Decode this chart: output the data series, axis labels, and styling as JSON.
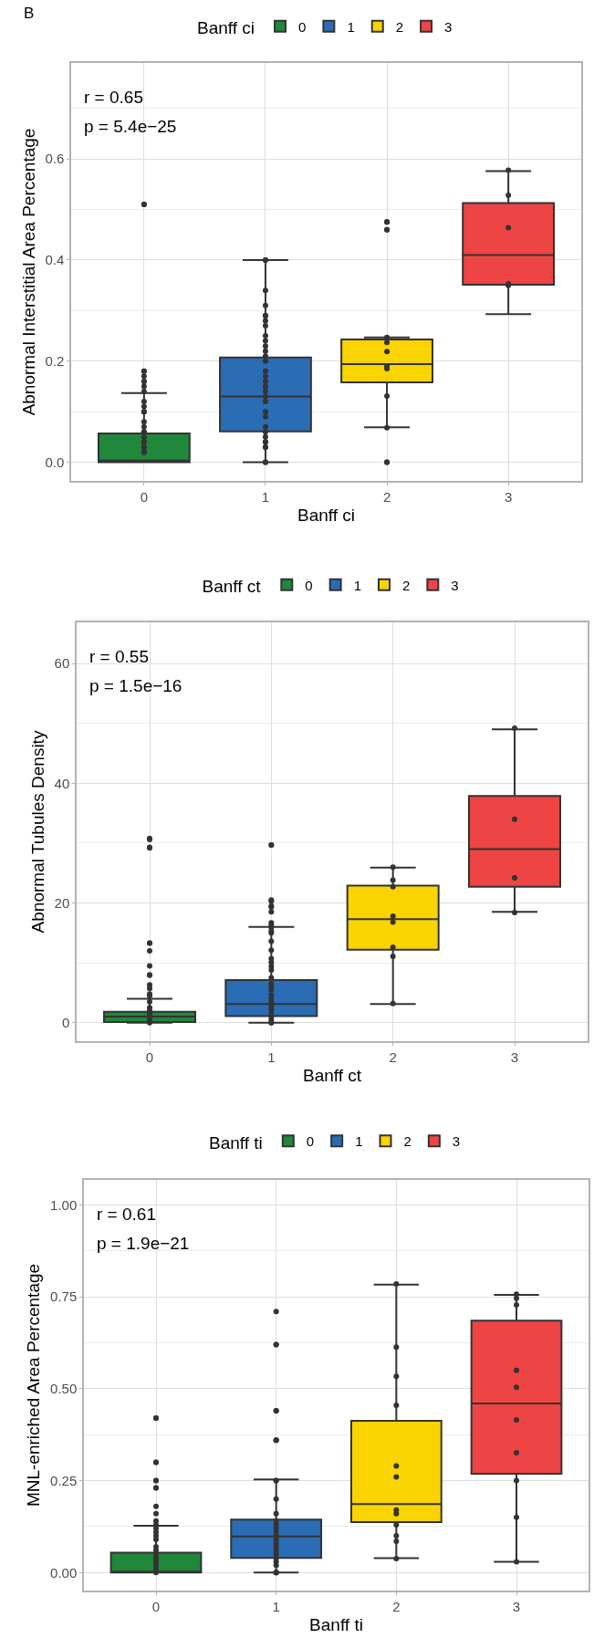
{
  "chart_data": [
    {
      "type": "box",
      "title": "B",
      "xlabel": "Banff ci",
      "ylabel": "Abnormal Interstitial Area Percentage",
      "legend_title": "Banff ci",
      "legend": "top",
      "grid": true,
      "categories": [
        "0",
        "1",
        "2",
        "3"
      ],
      "ylim": [
        -0.037,
        0.79
      ],
      "yticks": [
        {
          "value": 0,
          "label": "0.0"
        },
        {
          "value": 0.1,
          "label": null
        },
        {
          "value": 0.2,
          "label": "0.2"
        },
        {
          "value": 0.3,
          "label": null
        },
        {
          "value": 0.4,
          "label": "0.4"
        },
        {
          "value": 0.5,
          "label": null
        },
        {
          "value": 0.6,
          "label": "0.6"
        },
        {
          "value": 0.7,
          "label": null
        }
      ],
      "annotations": [
        "r = 0.65",
        "p = 5.4e−25"
      ],
      "series": [
        {
          "name": "0",
          "color": "#21873b",
          "x": [
            "0"
          ],
          "boxes": [
            {
              "low": 0,
              "q1": 0,
              "median": 0.003,
              "q3": 0.057,
              "high": 0.137
            }
          ]
        },
        {
          "name": "1",
          "color": "#2b6db5",
          "x": [
            "1"
          ],
          "boxes": [
            {
              "low": 0,
              "q1": 0.061,
              "median": 0.13,
              "q3": 0.207,
              "high": 0.4
            }
          ]
        },
        {
          "name": "2",
          "color": "#f9d400",
          "x": [
            "2"
          ],
          "boxes": [
            {
              "low": 0.069,
              "q1": 0.158,
              "median": 0.194,
              "q3": 0.243,
              "high": 0.247
            }
          ]
        },
        {
          "name": "3",
          "color": "#ee4444",
          "x": [
            "3"
          ],
          "boxes": [
            {
              "low": 0.293,
              "q1": 0.351,
              "median": 0.41,
              "q3": 0.513,
              "high": 0.576
            }
          ]
        },
        {
          "type": "scatter",
          "color": "#333333",
          "marker": "circle",
          "x": [
            "0",
            "0",
            "0",
            "0",
            "0",
            "0",
            "0",
            "0",
            "0",
            "0",
            "0",
            "0",
            "0",
            "0",
            "0",
            "0",
            "0",
            "0",
            "0",
            "0",
            "0",
            "0",
            "0",
            "0",
            "0",
            "1",
            "1",
            "1",
            "1",
            "1",
            "1",
            "1",
            "1",
            "1",
            "1",
            "1",
            "1",
            "1",
            "1",
            "1",
            "1",
            "1",
            "1",
            "1",
            "1",
            "1",
            "1",
            "1",
            "1",
            "1",
            "1",
            "1",
            "1",
            "1",
            "1",
            "1",
            "1",
            "2",
            "2",
            "2",
            "2",
            "2",
            "2",
            "2",
            "2",
            "2",
            "2",
            "2",
            "2",
            "2",
            "2",
            "3",
            "3",
            "3",
            "3",
            "3"
          ],
          "values": [
            0.51,
            0.51,
            0.18,
            0.18,
            0.17,
            0.16,
            0.16,
            0.15,
            0.14,
            0.12,
            0.11,
            0.1,
            0.1,
            0.08,
            0.07,
            0.06,
            0.06,
            0.05,
            0.04,
            0.04,
            0.03,
            0.03,
            0.02,
            0.02,
            0.02,
            0.4,
            0.4,
            0.34,
            0.31,
            0.29,
            0.29,
            0.28,
            0.27,
            0.25,
            0.24,
            0.23,
            0.22,
            0.21,
            0.2,
            0.18,
            0.17,
            0.16,
            0.15,
            0.14,
            0.13,
            0.12,
            0.1,
            0.09,
            0.07,
            0.06,
            0.05,
            0.04,
            0.04,
            0.03,
            0.03,
            0,
            0,
            0.476,
            0.475,
            0.46,
            0.46,
            0.247,
            0.245,
            0.237,
            0.219,
            0.19,
            0.185,
            0.131,
            0.068,
            0,
            0,
            0.578,
            0.528,
            0.464,
            0.353,
            0.35
          ]
        }
      ]
    },
    {
      "type": "box",
      "xlabel": "Banff ct",
      "ylabel": "Abnormal Tubules Density",
      "legend_title": "Banff ct",
      "legend": "top",
      "grid": true,
      "categories": [
        "0",
        "1",
        "2",
        "3"
      ],
      "ylim": [
        -3.1,
        66.9
      ],
      "yticks": [
        0,
        {
          "value": 10,
          "label": null
        },
        20,
        {
          "value": 30,
          "label": null
        },
        40,
        {
          "value": 50,
          "label": null
        },
        60
      ],
      "annotations": [
        "r = 0.55",
        "p = 1.5e−16"
      ],
      "series": [
        {
          "name": "0",
          "color": "#21873b",
          "x": [
            "0"
          ],
          "boxes": [
            {
              "low": 0,
              "q1": 0.1,
              "median": 1,
              "q3": 1.8,
              "high": 4
            }
          ]
        },
        {
          "name": "1",
          "color": "#2b6db5",
          "x": [
            "1"
          ],
          "boxes": [
            {
              "low": 0,
              "q1": 1.1,
              "median": 3.1,
              "q3": 7.1,
              "high": 16
            }
          ]
        },
        {
          "name": "2",
          "color": "#f9d400",
          "x": [
            "2"
          ],
          "boxes": [
            {
              "low": 3.1,
              "q1": 12.2,
              "median": 17.3,
              "q3": 22.9,
              "high": 25.9
            }
          ]
        },
        {
          "name": "3",
          "color": "#ee4444",
          "x": [
            "3"
          ],
          "boxes": [
            {
              "low": 18.5,
              "q1": 22.7,
              "median": 29,
              "q3": 37.9,
              "high": 49
            }
          ]
        },
        {
          "type": "scatter",
          "color": "#333333",
          "marker": "circle",
          "x": [
            "0",
            "0",
            "0",
            "0",
            "0",
            "0",
            "0",
            "0",
            "0",
            "0",
            "0",
            "0",
            "0",
            "0",
            "0",
            "0",
            "0",
            "0",
            "0",
            "0",
            "0",
            "0",
            "1",
            "1",
            "1",
            "1",
            "1",
            "1",
            "1",
            "1",
            "1",
            "1",
            "1",
            "1",
            "1",
            "1",
            "1",
            "1",
            "1",
            "1",
            "1",
            "1",
            "1",
            "1",
            "1",
            "1",
            "1",
            "1",
            "1",
            "1",
            "1",
            "1",
            "1",
            "1",
            "2",
            "2",
            "2",
            "2",
            "2",
            "2",
            "2",
            "2",
            "3",
            "3",
            "3",
            "3"
          ],
          "values": [
            30.8,
            30.6,
            29.3,
            29.2,
            13.3,
            13.3,
            12,
            9.5,
            8,
            7.9,
            6.3,
            5.7,
            4.8,
            4.5,
            3.5,
            2.5,
            2,
            1.5,
            1,
            0.5,
            0.2,
            0,
            29.7,
            29.7,
            20.5,
            20.3,
            19.5,
            19.3,
            18.5,
            16.7,
            16.3,
            15.9,
            15.3,
            15,
            13.6,
            12.1,
            10.7,
            10.1,
            9.4,
            8.8,
            7.5,
            6.5,
            6,
            5.5,
            4.6,
            4,
            3.5,
            2.7,
            2.2,
            1.5,
            1,
            0.5,
            0,
            0,
            26,
            23.8,
            22.7,
            17.8,
            16.8,
            12.6,
            11.1,
            3.2,
            49.2,
            34,
            24.2,
            18.4
          ]
        }
      ]
    },
    {
      "type": "box",
      "xlabel": "Banff ti",
      "ylabel": "MNL-enriched Area Percentage",
      "legend_title": "Banff ti",
      "legend": "top",
      "grid": true,
      "categories": [
        "0",
        "1",
        "2",
        "3"
      ],
      "ylim": [
        -0.049,
        1.068
      ],
      "yticks": [
        {
          "value": 0,
          "label": "0.00"
        },
        {
          "value": 0.125,
          "label": null
        },
        {
          "value": 0.25,
          "label": "0.25"
        },
        {
          "value": 0.375,
          "label": null
        },
        {
          "value": 0.5,
          "label": "0.50"
        },
        {
          "value": 0.625,
          "label": null
        },
        {
          "value": 0.75,
          "label": "0.75"
        },
        {
          "value": 0.875,
          "label": null
        },
        {
          "value": 1,
          "label": "1.00"
        }
      ],
      "annotations": [
        "r = 0.61",
        "p = 1.9e−21"
      ],
      "series": [
        {
          "name": "0",
          "color": "#21873b",
          "x": [
            "0"
          ],
          "boxes": [
            {
              "low": 0,
              "q1": 0,
              "median": 0.002,
              "q3": 0.054,
              "high": 0.127
            }
          ]
        },
        {
          "name": "1",
          "color": "#2b6db5",
          "x": [
            "1"
          ],
          "boxes": [
            {
              "low": 0,
              "q1": 0.04,
              "median": 0.098,
              "q3": 0.144,
              "high": 0.253
            }
          ]
        },
        {
          "name": "2",
          "color": "#f9d400",
          "x": [
            "2"
          ],
          "boxes": [
            {
              "low": 0.039,
              "q1": 0.137,
              "median": 0.186,
              "q3": 0.413,
              "high": 0.783
            }
          ]
        },
        {
          "name": "3",
          "color": "#ee4444",
          "x": [
            "3"
          ],
          "boxes": [
            {
              "low": 0.029,
              "q1": 0.269,
              "median": 0.46,
              "q3": 0.685,
              "high": 0.755
            }
          ]
        },
        {
          "type": "scatter",
          "color": "#333333",
          "marker": "circle",
          "x": [
            "0",
            "0",
            "0",
            "0",
            "0",
            "0",
            "0",
            "0",
            "0",
            "0",
            "0",
            "0",
            "0",
            "0",
            "0",
            "0",
            "0",
            "0",
            "0",
            "0",
            "0",
            "0",
            "0",
            "0",
            "0",
            "1",
            "1",
            "1",
            "1",
            "1",
            "1",
            "1",
            "1",
            "1",
            "1",
            "1",
            "1",
            "1",
            "1",
            "1",
            "1",
            "1",
            "1",
            "1",
            "1",
            "1",
            "1",
            "1",
            "1",
            "1",
            "1",
            "1",
            "1",
            "1",
            "2",
            "2",
            "2",
            "2",
            "2",
            "2",
            "2",
            "2",
            "2",
            "2",
            "2",
            "2",
            "3",
            "3",
            "3",
            "3",
            "3",
            "3",
            "3",
            "3",
            "3",
            "3"
          ],
          "values": [
            0.42,
            0.42,
            0.3,
            0.3,
            0.25,
            0.25,
            0.23,
            0.23,
            0.18,
            0.16,
            0.14,
            0.13,
            0.12,
            0.11,
            0.1,
            0.09,
            0.07,
            0.06,
            0.05,
            0.04,
            0.03,
            0.03,
            0.02,
            0.01,
            0,
            0.71,
            0.62,
            0.62,
            0.44,
            0.44,
            0.36,
            0.36,
            0.36,
            0.25,
            0.25,
            0.2,
            0.16,
            0.14,
            0.13,
            0.12,
            0.11,
            0.1,
            0.09,
            0.08,
            0.07,
            0.06,
            0.05,
            0.04,
            0.03,
            0.02,
            0,
            0,
            0,
            0,
            0.785,
            0.613,
            0.534,
            0.455,
            0.29,
            0.26,
            0.17,
            0.16,
            0.13,
            0.1,
            0.085,
            0.038,
            0.757,
            0.746,
            0.728,
            0.55,
            0.504,
            0.415,
            0.326,
            0.25,
            0.15,
            0.029
          ]
        }
      ]
    }
  ]
}
